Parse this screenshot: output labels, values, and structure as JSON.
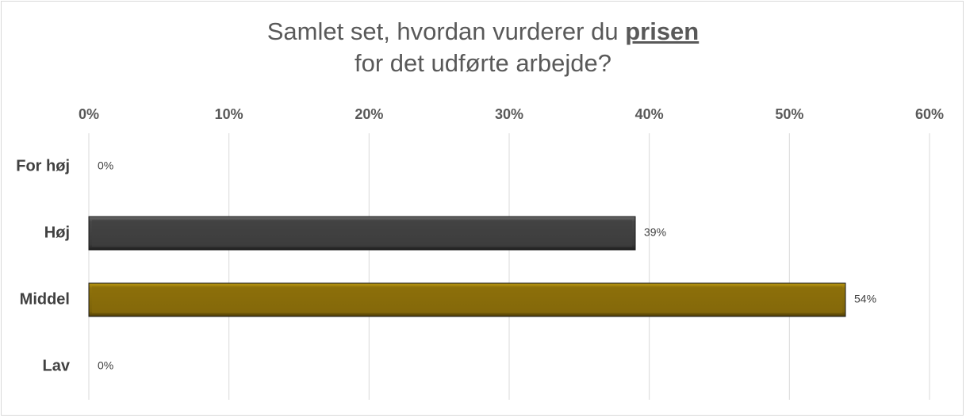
{
  "chart_data": {
    "type": "bar",
    "orientation": "horizontal",
    "title_line1_prefix": "Samlet set, hvordan vurderer du ",
    "title_line1_emphasis": "prisen",
    "title_line2": "for det udførte arbejde?",
    "categories": [
      "For høj",
      "Høj",
      "Middel",
      "Lav"
    ],
    "values": [
      0,
      39,
      54,
      0
    ],
    "data_labels": [
      "0%",
      "39%",
      "54%",
      "0%"
    ],
    "bar_colors": [
      "#404040",
      "#404040",
      "#8a6d0b",
      "#8a6d0b"
    ],
    "xlim": [
      0,
      60
    ],
    "x_ticks": [
      0,
      10,
      20,
      30,
      40,
      50,
      60
    ],
    "x_tick_labels": [
      "0%",
      "10%",
      "20%",
      "30%",
      "40%",
      "50%",
      "60%"
    ],
    "x_axis_position": "top",
    "grid": true,
    "legend": "none"
  }
}
